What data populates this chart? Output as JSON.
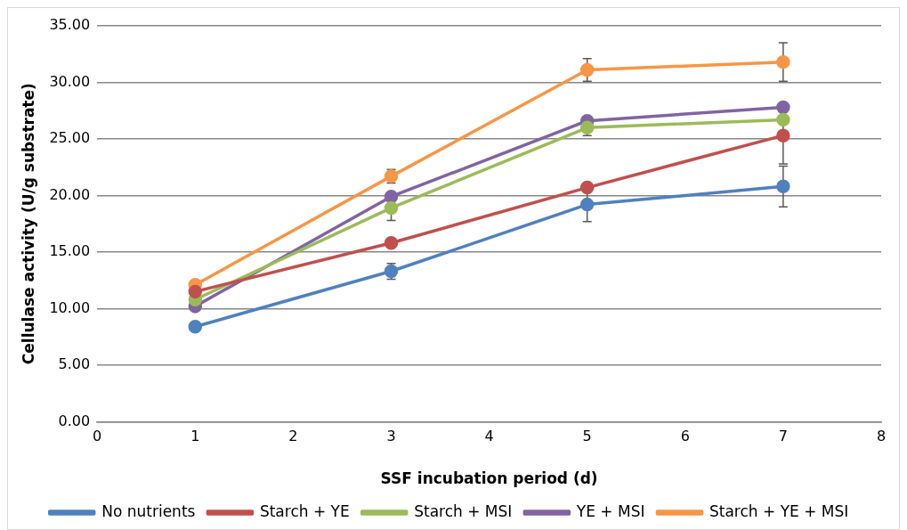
{
  "chart_data": {
    "type": "line",
    "xlabel": "SSF incubation period (d)",
    "ylabel": "Cellulase activity (U/g substrate)",
    "x": [
      1,
      3,
      5,
      7
    ],
    "series": [
      {
        "name": "No nutrients",
        "color": "#4f81bd",
        "values": [
          8.4,
          13.3,
          19.2,
          20.8
        ],
        "errors": [
          null,
          0.7,
          1.5,
          1.8
        ]
      },
      {
        "name": "Starch + YE",
        "color": "#c0504d",
        "values": [
          11.5,
          15.8,
          20.7,
          25.3
        ],
        "errors": [
          null,
          null,
          null,
          2.5
        ]
      },
      {
        "name": "Starch + MSI",
        "color": "#9bbb59",
        "values": [
          10.8,
          18.9,
          26.0,
          26.7
        ],
        "errors": [
          null,
          1.1,
          0.7,
          null
        ]
      },
      {
        "name": "YE + MSI",
        "color": "#8064a2",
        "values": [
          10.2,
          19.9,
          26.6,
          27.8
        ],
        "errors": [
          null,
          null,
          null,
          null
        ]
      },
      {
        "name": "Starch + YE + MSI",
        "color": "#f79646",
        "values": [
          12.1,
          21.7,
          31.1,
          31.8
        ],
        "errors": [
          null,
          0.6,
          1.0,
          1.7
        ]
      }
    ],
    "xlim": [
      0,
      8
    ],
    "xticks": [
      0,
      1,
      2,
      3,
      4,
      5,
      6,
      7,
      8
    ],
    "ylim": [
      0,
      35
    ],
    "yticks": [
      {
        "value": 0,
        "label": "0.00"
      },
      {
        "value": 5,
        "label": "5.00"
      },
      {
        "value": 10,
        "label": "10.00"
      },
      {
        "value": 15,
        "label": "15.00"
      },
      {
        "value": 20,
        "label": "20.00"
      },
      {
        "value": 25,
        "label": "25.00"
      },
      {
        "value": 30,
        "label": "30.00"
      },
      {
        "value": 35,
        "label": "35.00"
      }
    ],
    "grid": "y",
    "legend": "bottom",
    "marker": "circle",
    "line_style": "solid"
  }
}
